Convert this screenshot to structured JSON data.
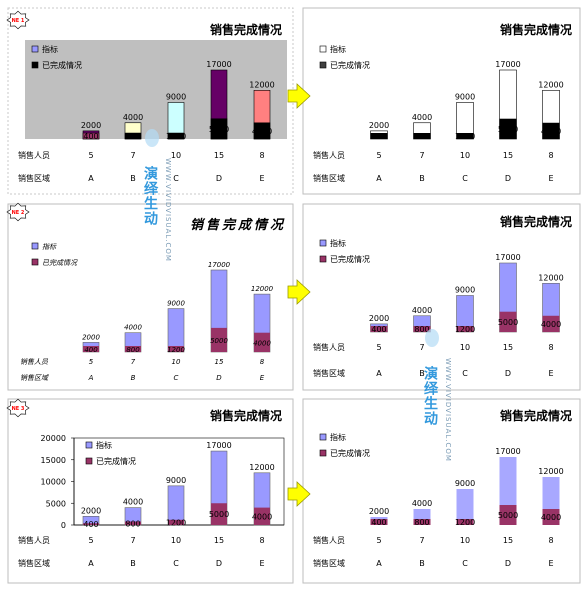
{
  "colors": {
    "gray_bg": "#bfbfbf",
    "dark_purple": "#660066",
    "salmon": "#ff8080",
    "light_yellow": "#ffffcc",
    "light_cyan": "#ccffff",
    "black": "#000000",
    "white": "#ffffff",
    "lavender": "#9999ff",
    "plum": "#993366",
    "arrow_yellow": "#ffff00",
    "badge_red": "#ff0000",
    "watermark_blue": "#3399dd",
    "panel_border": "#bdbdbd"
  },
  "badges": [
    "NE 1",
    "NE 2",
    "NE 3"
  ],
  "watermark": {
    "line1": "演绎生动",
    "line2": "WWW.VIVIDVISUAL.COM"
  },
  "chart_data": [
    {
      "panel": "row1-left",
      "type": "bar",
      "style": "stacked-overlap",
      "title": "销售完成情况",
      "legend": [
        "指标",
        "已完成情况"
      ],
      "legend_position": "top-left",
      "categories": [
        "5",
        "7",
        "10",
        "15",
        "8"
      ],
      "row_labels": [
        "销售人员",
        "销售区域"
      ],
      "regions": [
        "A",
        "B",
        "C",
        "D",
        "E"
      ],
      "series": [
        {
          "name": "指标",
          "values": [
            2000,
            4000,
            9000,
            17000,
            12000
          ]
        },
        {
          "name": "已完成情况",
          "values": [
            400,
            800,
            1200,
            5000,
            4000
          ]
        }
      ],
      "ylim": [
        0,
        17000
      ],
      "plot_background": "gray",
      "grid": false
    },
    {
      "panel": "row1-right",
      "type": "bar",
      "style": "stacked-overlap",
      "title": "销售完成情况",
      "legend": [
        "指标",
        "已完成情况"
      ],
      "legend_position": "top-left",
      "categories": [
        "5",
        "7",
        "10",
        "15",
        "8"
      ],
      "row_labels": [
        "销售人员",
        "销售区域"
      ],
      "regions": [
        "A",
        "B",
        "C",
        "D",
        "E"
      ],
      "series": [
        {
          "name": "指标",
          "values": [
            2000,
            4000,
            9000,
            17000,
            12000
          ]
        },
        {
          "name": "已完成情况",
          "values": [
            400,
            800,
            1200,
            5000,
            4000
          ]
        }
      ],
      "ylim": [
        0,
        17000
      ],
      "grid": false
    },
    {
      "panel": "row2-left",
      "type": "bar",
      "style": "stacked-overlap",
      "title": "销售完成情况",
      "legend": [
        "指标",
        "已完成情况"
      ],
      "legend_position": "top-left",
      "categories": [
        "5",
        "7",
        "10",
        "15",
        "8"
      ],
      "row_labels": [
        "销售人员",
        "销售区域"
      ],
      "regions": [
        "A",
        "B",
        "C",
        "D",
        "E"
      ],
      "series": [
        {
          "name": "指标",
          "values": [
            2000,
            4000,
            9000,
            17000,
            12000
          ]
        },
        {
          "name": "已完成情况",
          "values": [
            400,
            800,
            1200,
            5000,
            4000
          ]
        }
      ],
      "ylim": [
        0,
        17000
      ],
      "grid": false
    },
    {
      "panel": "row2-right",
      "type": "bar",
      "style": "stacked-overlap",
      "title": "销售完成情况",
      "legend": [
        "指标",
        "已完成情况"
      ],
      "legend_position": "top-left",
      "categories": [
        "5",
        "7",
        "10",
        "15",
        "8"
      ],
      "row_labels": [
        "销售人员",
        "销售区域"
      ],
      "regions": [
        "A",
        "B",
        "C",
        "D",
        "E"
      ],
      "series": [
        {
          "name": "指标",
          "values": [
            2000,
            4000,
            9000,
            17000,
            12000
          ]
        },
        {
          "name": "已完成情况",
          "values": [
            400,
            800,
            1200,
            5000,
            4000
          ]
        }
      ],
      "ylim": [
        0,
        17000
      ],
      "grid": false
    },
    {
      "panel": "row3-left",
      "type": "bar",
      "style": "stacked-overlap",
      "title": "销售完成情况",
      "legend": [
        "指标",
        "已完成情况"
      ],
      "legend_position": "top-left",
      "categories": [
        "5",
        "7",
        "10",
        "15",
        "8"
      ],
      "row_labels": [
        "销售人员",
        "销售区域"
      ],
      "regions": [
        "A",
        "B",
        "C",
        "D",
        "E"
      ],
      "series": [
        {
          "name": "指标",
          "values": [
            2000,
            4000,
            9000,
            17000,
            12000
          ]
        },
        {
          "name": "已完成情况",
          "values": [
            400,
            800,
            1200,
            5000,
            4000
          ]
        }
      ],
      "yticks": [
        "20000",
        "15000",
        "10000",
        "5000",
        "0"
      ],
      "ylim": [
        0,
        20000
      ],
      "grid": false
    },
    {
      "panel": "row3-right",
      "type": "bar",
      "style": "stacked-overlap",
      "title": "销售完成情况",
      "legend": [
        "指标",
        "已完成情况"
      ],
      "legend_position": "top-left",
      "categories": [
        "5",
        "7",
        "10",
        "15",
        "8"
      ],
      "row_labels": [
        "销售人员",
        "销售区域"
      ],
      "regions": [
        "A",
        "B",
        "C",
        "D",
        "E"
      ],
      "series": [
        {
          "name": "指标",
          "values": [
            2000,
            4000,
            9000,
            17000,
            12000
          ]
        },
        {
          "name": "已完成情况",
          "values": [
            400,
            800,
            1200,
            5000,
            4000
          ]
        }
      ],
      "ylim": [
        0,
        17000
      ],
      "grid": false
    }
  ]
}
